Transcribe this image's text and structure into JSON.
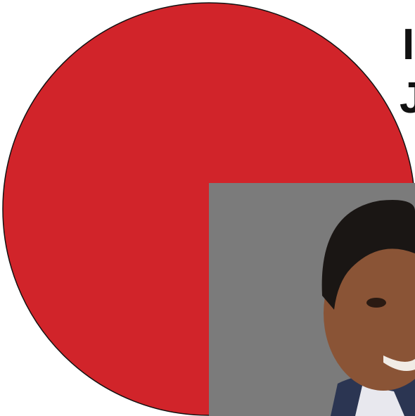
{
  "heading": {
    "line1": "I",
    "line2": "J"
  }
}
